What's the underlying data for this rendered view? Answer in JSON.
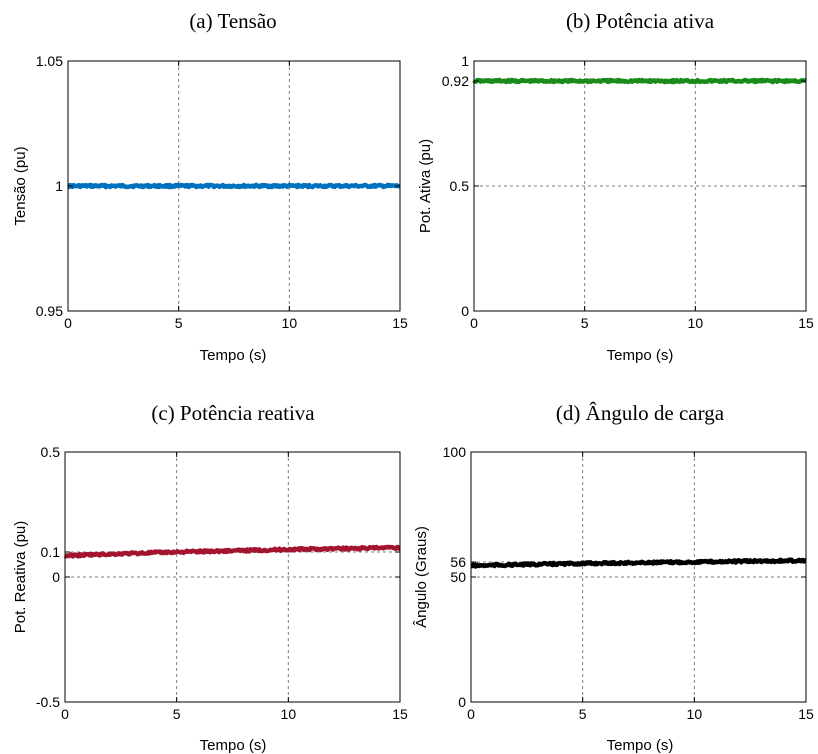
{
  "chart_data": [
    {
      "type": "line",
      "title": "(a) Tensão",
      "xlabel": "Tempo (s)",
      "ylabel": "Tensão (pu)",
      "xlim": [
        0,
        15
      ],
      "ylim": [
        0.95,
        1.05
      ],
      "xticks": [
        0,
        5,
        10,
        15
      ],
      "xtick_labels": [
        "0",
        "5",
        "10",
        "15"
      ],
      "yticks": [
        0.95,
        1,
        1.05
      ],
      "ytick_labels": [
        "0.95",
        "1",
        "1.05"
      ],
      "grid": true,
      "series": [
        {
          "x": [
            0,
            2.5,
            5,
            7.5,
            10,
            12.5,
            15
          ],
          "y": [
            1.0,
            1.0,
            1.0,
            1.0,
            1.0,
            1.0,
            1.0
          ],
          "color": "#0072bd"
        }
      ]
    },
    {
      "type": "line",
      "title": "(b) Potência ativa",
      "xlabel": "Tempo (s)",
      "ylabel": "Pot. Ativa (pu)",
      "xlim": [
        0,
        15
      ],
      "ylim": [
        0,
        1
      ],
      "xticks": [
        0,
        5,
        10,
        15
      ],
      "xtick_labels": [
        "0",
        "5",
        "10",
        "15"
      ],
      "yticks": [
        0,
        0.5,
        0.92,
        1
      ],
      "ytick_labels": [
        "0",
        "0.5",
        "0.92",
        "1"
      ],
      "grid": true,
      "series": [
        {
          "x": [
            0,
            2.5,
            5,
            7.5,
            10,
            12.5,
            15
          ],
          "y": [
            0.92,
            0.92,
            0.92,
            0.92,
            0.92,
            0.92,
            0.92
          ],
          "color": "#1a8a1a"
        }
      ]
    },
    {
      "type": "line",
      "title": "(c) Potência reativa",
      "xlabel": "Tempo (s)",
      "ylabel": "Pot. Reativa (pu)",
      "xlim": [
        0,
        15
      ],
      "ylim": [
        -0.5,
        0.5
      ],
      "xticks": [
        0,
        5,
        10,
        15
      ],
      "xtick_labels": [
        "0",
        "5",
        "10",
        "15"
      ],
      "yticks": [
        -0.5,
        0,
        0.1,
        0.5
      ],
      "ytick_labels": [
        "-0.5",
        "0",
        "0.1",
        "0.5"
      ],
      "grid": true,
      "series": [
        {
          "x": [
            0,
            2.5,
            5,
            7.5,
            10,
            12.5,
            15
          ],
          "y": [
            0.085,
            0.093,
            0.1,
            0.105,
            0.11,
            0.114,
            0.117
          ],
          "color": "#a2142f"
        }
      ]
    },
    {
      "type": "line",
      "title": "(d) Ângulo de carga",
      "xlabel": "Tempo (s)",
      "ylabel": "Ângulo (Graus)",
      "xlim": [
        0,
        15
      ],
      "ylim": [
        0,
        100
      ],
      "xticks": [
        0,
        5,
        10,
        15
      ],
      "xtick_labels": [
        "0",
        "5",
        "10",
        "15"
      ],
      "yticks": [
        0,
        50,
        56,
        100
      ],
      "ytick_labels": [
        "0",
        "50",
        "56",
        "100"
      ],
      "grid": true,
      "series": [
        {
          "x": [
            0,
            2.5,
            5,
            7.5,
            10,
            12.5,
            15
          ],
          "y": [
            54.5,
            55.0,
            55.4,
            55.7,
            56.0,
            56.3,
            56.6
          ],
          "color": "#000000"
        }
      ]
    }
  ]
}
